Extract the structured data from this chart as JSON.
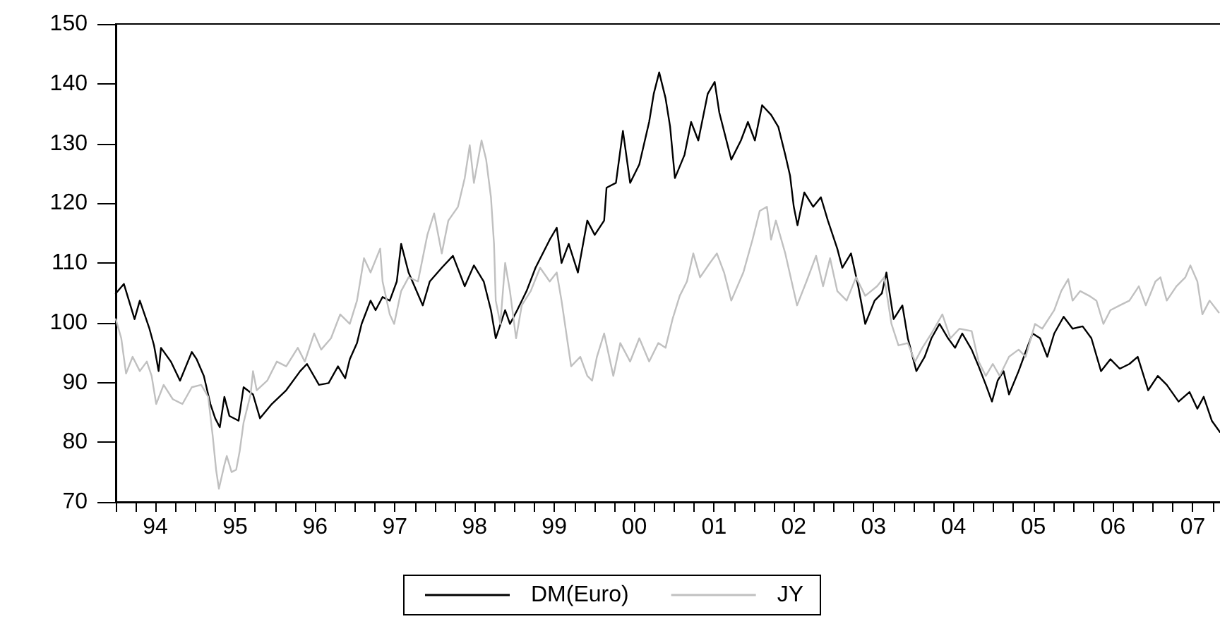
{
  "chart_data": {
    "type": "line",
    "xlim": [
      "1994-01-01",
      "2007-11-22"
    ],
    "xticks": [
      {
        "value": "1994-01-01",
        "label": null
      },
      {
        "value": "1994-04-01",
        "label": null
      },
      {
        "value": "1994-07-01",
        "label": "94"
      },
      {
        "value": "1994-10-01",
        "label": null
      },
      {
        "value": "1995-01-01",
        "label": null
      },
      {
        "value": "1995-04-01",
        "label": null
      },
      {
        "value": "1995-07-01",
        "label": "95"
      },
      {
        "value": "1995-10-01",
        "label": null
      },
      {
        "value": "1996-01-01",
        "label": null
      },
      {
        "value": "1996-04-01",
        "label": null
      },
      {
        "value": "1996-07-01",
        "label": "96"
      },
      {
        "value": "1996-10-01",
        "label": null
      },
      {
        "value": "1997-01-01",
        "label": null
      },
      {
        "value": "1997-04-01",
        "label": null
      },
      {
        "value": "1997-07-01",
        "label": "97"
      },
      {
        "value": "1997-10-01",
        "label": null
      },
      {
        "value": "1998-01-01",
        "label": null
      },
      {
        "value": "1998-04-01",
        "label": null
      },
      {
        "value": "1998-07-01",
        "label": "98"
      },
      {
        "value": "1998-10-01",
        "label": null
      },
      {
        "value": "1999-01-01",
        "label": null
      },
      {
        "value": "1999-04-01",
        "label": null
      },
      {
        "value": "1999-07-01",
        "label": "99"
      },
      {
        "value": "1999-10-01",
        "label": null
      },
      {
        "value": "2000-01-01",
        "label": null
      },
      {
        "value": "2000-04-01",
        "label": null
      },
      {
        "value": "2000-07-01",
        "label": "00"
      },
      {
        "value": "2000-10-01",
        "label": null
      },
      {
        "value": "2001-01-01",
        "label": null
      },
      {
        "value": "2001-04-01",
        "label": null
      },
      {
        "value": "2001-07-01",
        "label": "01"
      },
      {
        "value": "2001-10-01",
        "label": null
      },
      {
        "value": "2002-01-01",
        "label": null
      },
      {
        "value": "2002-04-01",
        "label": null
      },
      {
        "value": "2002-07-01",
        "label": "02"
      },
      {
        "value": "2002-10-01",
        "label": null
      },
      {
        "value": "2003-01-01",
        "label": null
      },
      {
        "value": "2003-04-01",
        "label": null
      },
      {
        "value": "2003-07-01",
        "label": "03"
      },
      {
        "value": "2003-10-01",
        "label": null
      },
      {
        "value": "2004-01-01",
        "label": null
      },
      {
        "value": "2004-04-01",
        "label": null
      },
      {
        "value": "2004-07-01",
        "label": "04"
      },
      {
        "value": "2004-10-01",
        "label": null
      },
      {
        "value": "2005-01-01",
        "label": null
      },
      {
        "value": "2005-04-01",
        "label": null
      },
      {
        "value": "2005-07-01",
        "label": "05"
      },
      {
        "value": "2005-10-01",
        "label": null
      },
      {
        "value": "2006-01-01",
        "label": null
      },
      {
        "value": "2006-04-01",
        "label": null
      },
      {
        "value": "2006-07-01",
        "label": "06"
      },
      {
        "value": "2006-10-01",
        "label": null
      },
      {
        "value": "2007-01-01",
        "label": null
      },
      {
        "value": "2007-04-01",
        "label": null
      },
      {
        "value": "2007-07-01",
        "label": "07"
      },
      {
        "value": "2007-10-01",
        "label": null
      }
    ],
    "ylim": [
      70,
      150
    ],
    "yticks": [
      70,
      80,
      90,
      100,
      110,
      120,
      130,
      140,
      150
    ],
    "grid": false,
    "legend": "bottom",
    "marker": "none",
    "line_style": "solid",
    "series": [
      {
        "name": "DM(Euro)",
        "color": "#000000",
        "x": [
          "1994-01-01",
          "1994-02-07",
          "1994-03-28",
          "1994-04-21",
          "1994-06-04",
          "1994-06-25",
          "1994-07-16",
          "1994-07-27",
          "1994-09-10",
          "1994-10-22",
          "1994-12-15",
          "1995-01-06",
          "1995-02-08",
          "1995-03-10",
          "1995-04-01",
          "1995-04-22",
          "1995-05-13",
          "1995-06-05",
          "1995-07-17",
          "1995-08-09",
          "1995-09-21",
          "1995-10-23",
          "1995-12-16",
          "1996-02-20",
          "1996-04-24",
          "1996-05-25",
          "1996-07-19",
          "1996-09-01",
          "1996-10-14",
          "1996-11-16",
          "1996-12-07",
          "1997-01-09",
          "1997-01-30",
          "1997-03-12",
          "1997-04-04",
          "1997-05-06",
          "1997-06-08",
          "1997-07-10",
          "1997-07-30",
          "1997-09-02",
          "1997-11-06",
          "1997-12-08",
          "1998-02-01",
          "1998-03-24",
          "1998-05-17",
          "1998-06-28",
          "1998-08-12",
          "1998-09-14",
          "1998-10-06",
          "1998-11-18",
          "1998-12-10",
          "1999-01-12",
          "1999-02-24",
          "1999-04-06",
          "1999-06-10",
          "1999-07-12",
          "1999-08-03",
          "1999-09-05",
          "1999-10-17",
          "1999-11-29",
          "2000-01-02",
          "2000-02-14",
          "2000-02-25",
          "2000-04-08",
          "2000-05-10",
          "2000-06-12",
          "2000-07-24",
          "2000-09-07",
          "2000-09-28",
          "2000-10-23",
          "2000-11-21",
          "2000-12-12",
          "2001-01-03",
          "2001-02-16",
          "2001-03-18",
          "2001-04-20",
          "2001-06-02",
          "2001-07-04",
          "2001-07-25",
          "2001-09-18",
          "2001-11-01",
          "2001-12-03",
          "2002-01-04",
          "2002-02-06",
          "2002-03-19",
          "2002-04-21",
          "2002-05-23",
          "2002-06-14",
          "2002-07-01",
          "2002-07-18",
          "2002-08-18",
          "2002-09-28",
          "2002-11-02",
          "2002-12-04",
          "2003-01-16",
          "2003-02-08",
          "2003-03-20",
          "2003-04-22",
          "2003-05-24",
          "2003-07-06",
          "2003-08-08",
          "2003-08-29",
          "2003-10-01",
          "2003-11-10",
          "2003-12-05",
          "2004-01-13",
          "2004-02-20",
          "2004-03-22",
          "2004-04-28",
          "2004-06-06",
          "2004-07-08",
          "2004-08-10",
          "2004-09-22",
          "2004-10-24",
          "2004-11-26",
          "2004-12-24",
          "2005-01-19",
          "2005-02-15",
          "2005-03-12",
          "2005-04-25",
          "2005-05-27",
          "2005-06-28",
          "2005-08-01",
          "2005-09-03",
          "2005-10-05",
          "2005-11-17",
          "2005-12-28",
          "2006-02-12",
          "2006-03-24",
          "2006-05-07",
          "2006-06-19",
          "2006-08-01",
          "2006-09-14",
          "2006-10-22",
          "2006-12-09",
          "2007-01-22",
          "2007-03-04",
          "2007-04-27",
          "2007-06-16",
          "2007-07-22",
          "2007-08-20",
          "2007-09-26",
          "2007-11-02"
        ],
        "values": [
          104.9,
          106.5,
          100.6,
          103.7,
          99.0,
          96.2,
          91.9,
          95.8,
          93.5,
          90.3,
          95.1,
          93.9,
          91.1,
          86.4,
          84.0,
          82.5,
          87.6,
          84.4,
          83.6,
          89.2,
          88.0,
          84.0,
          86.4,
          88.7,
          91.9,
          93.1,
          89.6,
          89.9,
          92.7,
          90.7,
          93.9,
          96.6,
          99.8,
          103.7,
          102.1,
          104.3,
          103.7,
          106.9,
          113.2,
          108.4,
          102.9,
          106.9,
          109.2,
          111.2,
          106.1,
          109.6,
          106.9,
          102.1,
          97.4,
          102.1,
          99.8,
          102.1,
          105.3,
          109.2,
          113.9,
          115.9,
          110.0,
          113.2,
          108.4,
          117.1,
          114.7,
          117.1,
          122.6,
          123.4,
          132.1,
          123.4,
          126.5,
          133.6,
          138.3,
          141.9,
          137.6,
          132.8,
          124.2,
          128.1,
          133.6,
          130.5,
          138.3,
          140.3,
          135.2,
          127.3,
          130.5,
          133.6,
          130.5,
          136.4,
          134.8,
          132.8,
          128.1,
          124.6,
          119.4,
          116.3,
          121.8,
          119.4,
          121.0,
          117.1,
          112.4,
          109.2,
          111.6,
          106.1,
          99.8,
          103.7,
          104.9,
          108.4,
          100.6,
          102.9,
          97.4,
          91.9,
          94.3,
          97.4,
          99.8,
          97.4,
          95.8,
          98.2,
          95.5,
          92.7,
          89.6,
          86.8,
          90.3,
          91.9,
          88.0,
          91.9,
          95.1,
          98.2,
          97.4,
          94.3,
          98.2,
          101.0,
          99.0,
          99.4,
          97.4,
          91.9,
          93.9,
          92.3,
          93.1,
          94.3,
          88.7,
          91.1,
          89.6,
          86.8,
          88.4,
          85.6,
          87.6,
          83.6,
          81.7
        ]
      },
      {
        "name": "JY",
        "color": "#c0c0c0",
        "x": [
          "1994-01-01",
          "1994-01-26",
          "1994-02-17",
          "1994-03-19",
          "1994-04-21",
          "1994-05-23",
          "1994-06-14",
          "1994-07-05",
          "1994-08-08",
          "1994-09-19",
          "1994-11-02",
          "1994-12-15",
          "1995-01-27",
          "1995-02-28",
          "1995-03-21",
          "1995-04-05",
          "1995-04-18",
          "1995-05-13",
          "1995-05-24",
          "1995-06-15",
          "1995-07-06",
          "1995-07-22",
          "1995-08-09",
          "1995-09-10",
          "1995-09-21",
          "1995-10-08",
          "1995-11-25",
          "1996-01-08",
          "1996-02-20",
          "1996-04-13",
          "1996-05-15",
          "1996-06-27",
          "1996-07-29",
          "1996-09-12",
          "1996-10-24",
          "1996-12-07",
          "1997-01-09",
          "1997-02-10",
          "1997-03-12",
          "1997-04-25",
          "1997-05-06",
          "1997-06-08",
          "1997-06-28",
          "1997-07-30",
          "1997-09-02",
          "1997-10-15",
          "1997-11-27",
          "1997-12-28",
          "1998-02-01",
          "1998-03-03",
          "1998-04-16",
          "1998-05-17",
          "1998-06-09",
          "1998-06-28",
          "1998-08-02",
          "1998-08-23",
          "1998-09-14",
          "1998-09-28",
          "1998-10-06",
          "1998-10-27",
          "1998-11-18",
          "1998-12-10",
          "1999-01-07",
          "1999-02-02",
          "1999-03-15",
          "1999-04-27",
          "1999-06-10",
          "1999-07-12",
          "1999-08-03",
          "1999-09-16",
          "1999-10-28",
          "1999-11-29",
          "1999-12-21",
          "2000-01-12",
          "2000-02-14",
          "2000-03-27",
          "2000-04-28",
          "2000-06-12",
          "2000-07-24",
          "2000-09-07",
          "2000-10-19",
          "2000-11-21",
          "2000-12-23",
          "2001-01-25",
          "2001-02-27",
          "2001-03-28",
          "2001-04-28",
          "2001-06-12",
          "2001-07-14",
          "2001-08-16",
          "2001-09-18",
          "2001-11-12",
          "2001-12-24",
          "2002-01-26",
          "2002-02-28",
          "2002-03-19",
          "2002-04-10",
          "2002-05-23",
          "2002-07-16",
          "2002-08-28",
          "2002-10-11",
          "2002-11-12",
          "2002-12-14",
          "2003-01-16",
          "2003-02-28",
          "2003-04-12",
          "2003-05-24",
          "2003-07-17",
          "2003-08-19",
          "2003-09-21",
          "2003-10-23",
          "2003-12-05",
          "2004-01-07",
          "2004-02-09",
          "2004-03-22",
          "2004-05-11",
          "2004-06-17",
          "2004-07-28",
          "2004-09-22",
          "2004-10-24",
          "2004-11-26",
          "2004-12-28",
          "2005-01-28",
          "2005-03-12",
          "2005-04-25",
          "2005-05-27",
          "2005-07-09",
          "2005-08-11",
          "2005-10-05",
          "2005-11-06",
          "2005-12-08",
          "2005-12-28",
          "2006-02-01",
          "2006-03-14",
          "2006-04-16",
          "2006-05-18",
          "2006-06-19",
          "2006-08-01",
          "2006-09-14",
          "2006-10-27",
          "2006-11-28",
          "2007-01-11",
          "2007-02-03",
          "2007-03-04",
          "2007-04-17",
          "2007-05-28",
          "2007-06-20",
          "2007-07-22",
          "2007-08-14",
          "2007-09-16",
          "2007-10-28"
        ],
        "values": [
          100.6,
          97.4,
          91.5,
          94.3,
          91.9,
          93.5,
          91.1,
          86.4,
          89.6,
          87.2,
          86.4,
          89.2,
          89.6,
          87.6,
          80.9,
          75.4,
          72.2,
          76.2,
          77.7,
          75.0,
          75.4,
          78.5,
          83.3,
          88.0,
          91.9,
          88.7,
          90.3,
          93.5,
          92.7,
          95.8,
          93.5,
          98.2,
          95.5,
          97.4,
          101.4,
          99.8,
          103.7,
          110.8,
          108.4,
          112.4,
          106.9,
          101.4,
          99.8,
          105.3,
          107.6,
          106.9,
          114.7,
          118.3,
          111.6,
          117.1,
          119.4,
          124.2,
          129.7,
          123.4,
          130.5,
          127.3,
          121.0,
          113.2,
          103.7,
          99.8,
          110.0,
          105.3,
          97.4,
          102.9,
          105.3,
          109.2,
          106.9,
          108.4,
          103.7,
          92.7,
          94.3,
          91.1,
          90.3,
          94.3,
          98.2,
          91.1,
          96.6,
          93.5,
          97.4,
          93.5,
          96.6,
          95.8,
          100.6,
          104.5,
          106.9,
          111.6,
          107.6,
          110.0,
          111.6,
          108.4,
          103.7,
          108.4,
          113.9,
          118.7,
          119.4,
          113.9,
          117.1,
          111.6,
          102.9,
          106.9,
          111.2,
          106.1,
          110.8,
          105.3,
          103.7,
          107.6,
          104.5,
          106.1,
          107.6,
          99.8,
          96.2,
          96.6,
          93.5,
          95.8,
          98.2,
          101.4,
          97.4,
          99.0,
          98.6,
          93.5,
          91.1,
          93.1,
          91.1,
          94.3,
          95.5,
          94.3,
          99.8,
          99.0,
          102.1,
          105.3,
          107.3,
          103.7,
          105.3,
          104.5,
          103.7,
          99.8,
          102.1,
          102.9,
          103.7,
          106.1,
          102.9,
          106.9,
          107.6,
          103.7,
          106.1,
          107.6,
          109.6,
          106.9,
          101.4,
          103.7,
          101.7
        ]
      }
    ]
  }
}
